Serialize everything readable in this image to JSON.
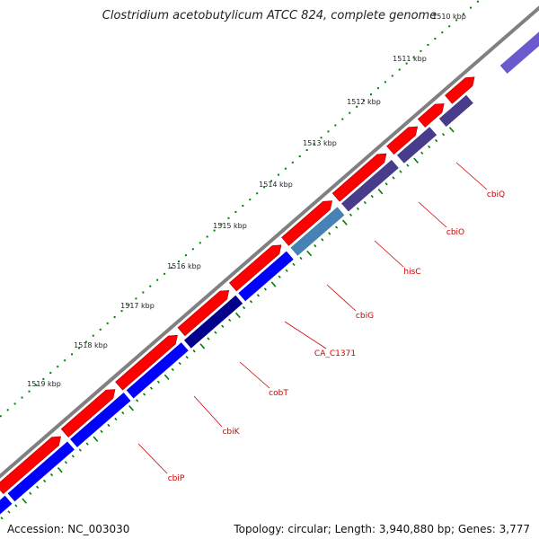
{
  "header": {
    "title": "Clostridium acetobutylicum ATCC 824, complete genome"
  },
  "footer": {
    "accession": "Accession: NC_003030",
    "topology": "Topology: circular; Length: 3,940,880 bp; Genes: 3,777"
  },
  "scale_labels": [
    "1510 kbp",
    "1511 kbp",
    "1512 kbp",
    "1513 kbp",
    "1514 kbp",
    "1515 kbp",
    "1516 kbp",
    "1517 kbp",
    "1518 kbp",
    "1519 kbp"
  ],
  "gene_labels": [
    "cbiQ",
    "cbiO",
    "hisC",
    "cbiG",
    "CA_C1371",
    "cobT",
    "cbiK",
    "cbiP"
  ],
  "colors": {
    "backbone": "#808080",
    "forward_genes": "#ff0000",
    "reverse_genes": "#0000ff",
    "reverse_dark": "#00008b",
    "reverse_slate": "#483d8b",
    "reverse_steel": "#4682b4",
    "reverse_light": "#6a5acd",
    "ticks": "#008000",
    "gene_label": "#cc0000"
  }
}
